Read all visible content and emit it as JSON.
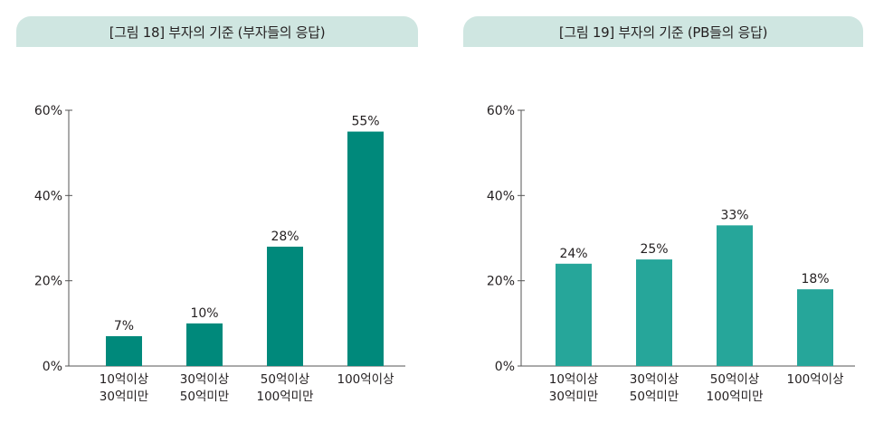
{
  "chart_data": [
    {
      "type": "bar",
      "title": "[그림 18] 부자의 기준 (부자들의 응답)",
      "categories": [
        [
          "10억이상",
          "30억미만"
        ],
        [
          "30억이상",
          "50억미만"
        ],
        [
          "50억이상",
          "100억미만"
        ],
        [
          "100억이상"
        ]
      ],
      "values": [
        7,
        10,
        28,
        55
      ],
      "value_labels": [
        "7%",
        "10%",
        "28%",
        "55%"
      ],
      "yticks": [
        "0%",
        "20%",
        "40%",
        "60%"
      ],
      "ylim": [
        0,
        60
      ],
      "bar_color": "#00897b",
      "grid": false
    },
    {
      "type": "bar",
      "title": "[그림 19] 부자의 기준 (PB들의 응답)",
      "categories": [
        [
          "10억이상",
          "30억미만"
        ],
        [
          "30억이상",
          "50억미만"
        ],
        [
          "50억이상",
          "100억미만"
        ],
        [
          "100억이상"
        ]
      ],
      "values": [
        24,
        25,
        33,
        18
      ],
      "value_labels": [
        "24%",
        "25%",
        "33%",
        "18%"
      ],
      "yticks": [
        "0%",
        "20%",
        "40%",
        "60%"
      ],
      "ylim": [
        0,
        60
      ],
      "bar_color": "#26a69a",
      "grid": false
    }
  ],
  "colors": {
    "title_tab": "#cfe6e1",
    "axis": "#555555",
    "text": "#231f20"
  }
}
